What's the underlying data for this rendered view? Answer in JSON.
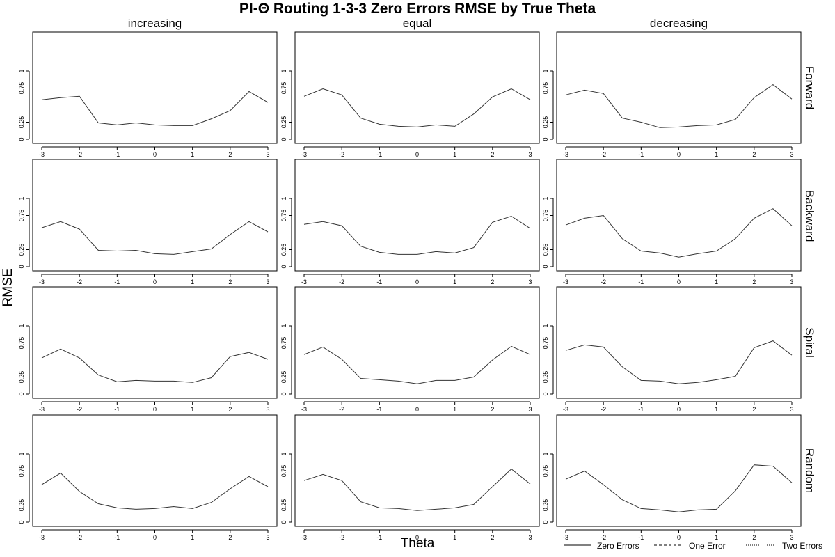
{
  "title": "PI-Θ Routing 1-3-3 Zero Errors RMSE by True Theta",
  "xlabel": "Theta",
  "ylabel": "RMSE",
  "columns": [
    "increasing",
    "equal",
    "decreasing"
  ],
  "rows": [
    "Forward",
    "Backward",
    "Spiral",
    "Random"
  ],
  "legend": [
    {
      "label": "Zero Errors",
      "style": "solid"
    },
    {
      "label": "One Error",
      "style": "dashed"
    },
    {
      "label": "Two Errors",
      "style": "dotted"
    }
  ],
  "chart_data": {
    "type": "line",
    "layout": "facet-grid",
    "x": [
      -3,
      -2.5,
      -2,
      -1.5,
      -1,
      -0.5,
      0,
      0.5,
      1,
      1.5,
      2,
      2.5,
      3
    ],
    "xticks": [
      "-3",
      "-2",
      "-1",
      "0",
      "1",
      "2",
      "3"
    ],
    "yticks": [
      "0",
      "0.25",
      "0.75",
      "1"
    ],
    "xlim": [
      -3,
      3
    ],
    "ylim": [
      0,
      1.5
    ],
    "grid": false,
    "panels": [
      {
        "row": "Forward",
        "col": "increasing",
        "series": [
          {
            "name": "Zero Errors",
            "values": [
              0.58,
              0.61,
              0.63,
              0.24,
              0.21,
              0.24,
              0.21,
              0.2,
              0.2,
              0.3,
              0.42,
              0.7,
              0.54
            ]
          }
        ]
      },
      {
        "row": "Forward",
        "col": "equal",
        "series": [
          {
            "name": "Zero Errors",
            "values": [
              0.63,
              0.74,
              0.65,
              0.31,
              0.22,
              0.19,
              0.18,
              0.21,
              0.19,
              0.37,
              0.62,
              0.74,
              0.58
            ]
          }
        ]
      },
      {
        "row": "Forward",
        "col": "decreasing",
        "series": [
          {
            "name": "Zero Errors",
            "values": [
              0.65,
              0.72,
              0.67,
              0.31,
              0.25,
              0.17,
              0.18,
              0.2,
              0.21,
              0.29,
              0.61,
              0.8,
              0.59
            ]
          }
        ]
      },
      {
        "row": "Backward",
        "col": "increasing",
        "series": [
          {
            "name": "Zero Errors",
            "values": [
              0.57,
              0.66,
              0.55,
              0.24,
              0.23,
              0.24,
              0.19,
              0.18,
              0.22,
              0.26,
              0.47,
              0.66,
              0.51
            ]
          }
        ]
      },
      {
        "row": "Backward",
        "col": "equal",
        "series": [
          {
            "name": "Zero Errors",
            "values": [
              0.62,
              0.66,
              0.6,
              0.3,
              0.21,
              0.18,
              0.18,
              0.22,
              0.2,
              0.28,
              0.65,
              0.74,
              0.56
            ]
          }
        ]
      },
      {
        "row": "Backward",
        "col": "decreasing",
        "series": [
          {
            "name": "Zero Errors",
            "values": [
              0.61,
              0.71,
              0.75,
              0.41,
              0.23,
              0.2,
              0.14,
              0.19,
              0.23,
              0.41,
              0.71,
              0.85,
              0.6
            ]
          }
        ]
      },
      {
        "row": "Spiral",
        "col": "increasing",
        "series": [
          {
            "name": "Zero Errors",
            "values": [
              0.53,
              0.66,
              0.53,
              0.28,
              0.18,
              0.2,
              0.19,
              0.19,
              0.17,
              0.24,
              0.55,
              0.61,
              0.51
            ]
          }
        ]
      },
      {
        "row": "Spiral",
        "col": "equal",
        "series": [
          {
            "name": "Zero Errors",
            "values": [
              0.58,
              0.69,
              0.51,
              0.23,
              0.21,
              0.19,
              0.15,
              0.2,
              0.2,
              0.25,
              0.5,
              0.7,
              0.58
            ]
          }
        ]
      },
      {
        "row": "Spiral",
        "col": "decreasing",
        "series": [
          {
            "name": "Zero Errors",
            "values": [
              0.64,
              0.72,
              0.69,
              0.4,
              0.2,
              0.19,
              0.15,
              0.17,
              0.21,
              0.26,
              0.68,
              0.78,
              0.57
            ]
          }
        ]
      },
      {
        "row": "Random",
        "col": "increasing",
        "series": [
          {
            "name": "Zero Errors",
            "values": [
              0.55,
              0.72,
              0.45,
              0.27,
              0.21,
              0.19,
              0.2,
              0.23,
              0.2,
              0.29,
              0.49,
              0.67,
              0.52
            ]
          }
        ]
      },
      {
        "row": "Random",
        "col": "equal",
        "series": [
          {
            "name": "Zero Errors",
            "values": [
              0.61,
              0.7,
              0.61,
              0.3,
              0.21,
              0.2,
              0.17,
              0.19,
              0.21,
              0.26,
              0.52,
              0.78,
              0.56
            ]
          }
        ]
      },
      {
        "row": "Random",
        "col": "decreasing",
        "series": [
          {
            "name": "Zero Errors",
            "values": [
              0.63,
              0.75,
              0.55,
              0.33,
              0.2,
              0.18,
              0.15,
              0.18,
              0.19,
              0.46,
              0.84,
              0.82,
              0.58
            ]
          }
        ]
      }
    ]
  }
}
